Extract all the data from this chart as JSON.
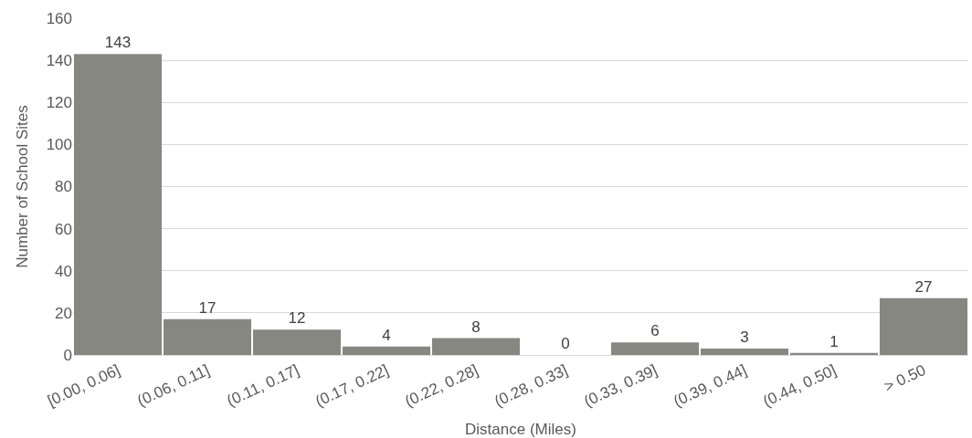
{
  "chart_data": {
    "type": "bar",
    "xlabel": "Distance (Miles)",
    "ylabel": "Number of School Sites",
    "categories": [
      "[0.00, 0.06]",
      "(0.06, 0.11]",
      "(0.11, 0.17]",
      "(0.17, 0.22]",
      "(0.22, 0.28]",
      "(0.28, 0.33]",
      "(0.33, 0.39]",
      "(0.39, 0.44]",
      "(0.44, 0.50]",
      "> 0.50"
    ],
    "values": [
      143,
      17,
      12,
      4,
      8,
      0,
      6,
      3,
      1,
      27
    ],
    "color": "#878782",
    "ylim": [
      0,
      160
    ],
    "yticks": [
      0,
      20,
      40,
      60,
      80,
      100,
      120,
      140,
      160
    ],
    "grid": "y",
    "data_labels": true
  }
}
